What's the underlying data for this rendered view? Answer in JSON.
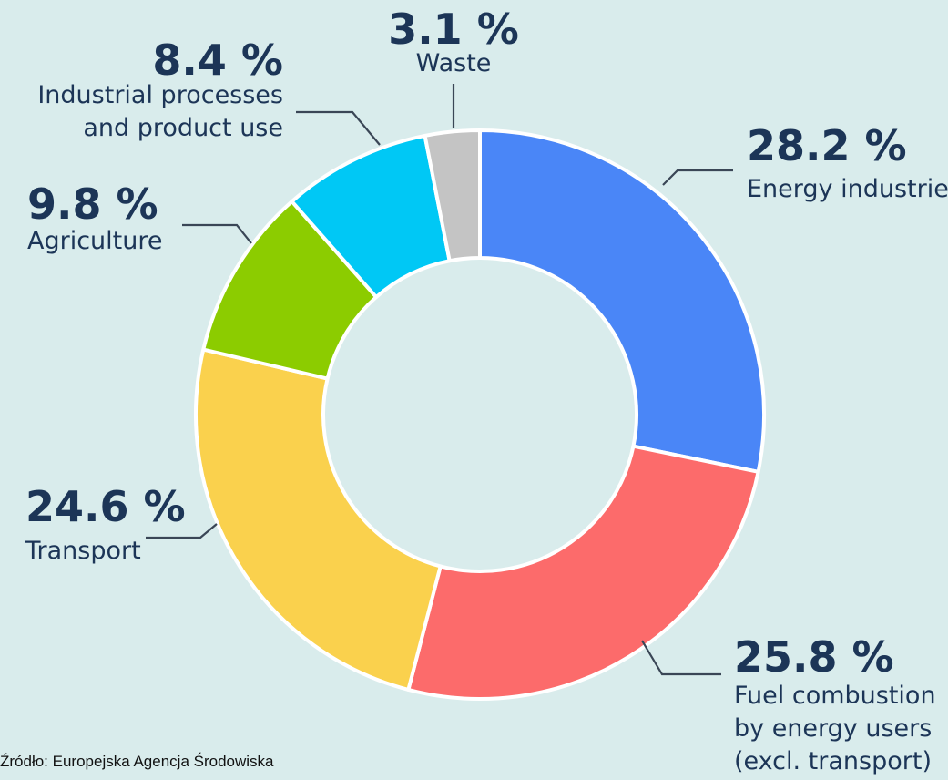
{
  "chart_data": {
    "type": "pie",
    "variant": "donut",
    "start_angle_deg": 0,
    "direction": "clockwise",
    "slices": [
      {
        "key": "energy",
        "pct_label": "28.2 %",
        "value": 28.2,
        "label_lines": [
          "Energy industries"
        ],
        "color": "#4a86f7"
      },
      {
        "key": "fuel",
        "pct_label": "25.8 %",
        "value": 25.8,
        "label_lines": [
          "Fuel combustion",
          "by energy users",
          "(excl. transport)"
        ],
        "color": "#fc6b6b"
      },
      {
        "key": "transport",
        "pct_label": "24.6 %",
        "value": 24.6,
        "label_lines": [
          "Transport"
        ],
        "color": "#fad14d"
      },
      {
        "key": "agriculture",
        "pct_label": "9.8 %",
        "value": 9.8,
        "label_lines": [
          "Agriculture"
        ],
        "color": "#8ccc00"
      },
      {
        "key": "industrial",
        "pct_label": "8.4 %",
        "value": 8.4,
        "label_lines": [
          "Industrial processes",
          "and product use"
        ],
        "color": "#00c8f5"
      },
      {
        "key": "waste",
        "pct_label": "3.1 %",
        "value": 3.1,
        "label_lines": [
          "Waste"
        ],
        "color": "#c4c4c4"
      }
    ]
  },
  "source_text": "Źródło: Europejska Agencja Środowiska",
  "colors": {
    "background": "#d9ecec",
    "text": "#1c3557",
    "separator": "#ffffff"
  }
}
